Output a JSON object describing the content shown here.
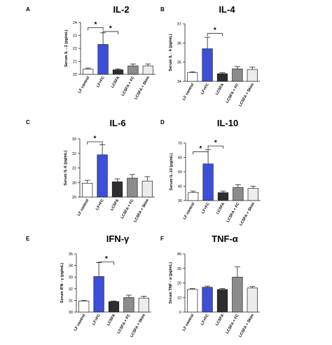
{
  "chart_data": [
    {
      "type": "bar",
      "letter": "A",
      "title": "IL-2",
      "ylabel": "Serum IL - 2 (pg/mL)",
      "categories": [
        "LF control",
        "LF+FC",
        "LCSFA",
        "LCSFA + FC",
        "LCSFA + Skim"
      ],
      "values": [
        20.4,
        22.3,
        20.35,
        20.65,
        20.65
      ],
      "errors": [
        0.08,
        0.9,
        0.07,
        0.15,
        0.15
      ],
      "ylim": [
        20,
        24
      ],
      "yticks": [
        "20",
        "21",
        "22",
        "23",
        "24"
      ],
      "significance": [
        {
          "from": 0,
          "to": 1,
          "label": "*",
          "level": 23.6
        },
        {
          "from": 1,
          "to": 2,
          "label": "*",
          "level": 23.3
        }
      ]
    },
    {
      "type": "bar",
      "letter": "B",
      "title": "IL-4",
      "ylabel": "Serum IL - 4 (pg/mL)",
      "categories": [
        "LF control",
        "LF+FC",
        "LCSFA",
        "LCSFA + FC",
        "LCSFA + Skim"
      ],
      "values": [
        34.45,
        35.7,
        34.4,
        34.65,
        34.62
      ],
      "errors": [
        0.05,
        0.6,
        0.05,
        0.12,
        0.12
      ],
      "ylim": [
        34,
        37
      ],
      "yticks": [
        "34",
        "35",
        "36",
        "37"
      ],
      "significance": [
        {
          "from": 1,
          "to": 2,
          "label": "*",
          "level": 36.5
        }
      ]
    },
    {
      "type": "bar",
      "letter": "C",
      "title": "IL-6",
      "ylabel": "Serum IL-6 (pg/mL)",
      "categories": [
        "LF control",
        "LF+FC",
        "LCSFA",
        "LCSFA + FC",
        "LCSFA + Skim"
      ],
      "values": [
        29.95,
        31.9,
        30.05,
        30.3,
        30.1
      ],
      "errors": [
        0.2,
        0.7,
        0.2,
        0.25,
        0.3
      ],
      "ylim": [
        29,
        33
      ],
      "yticks": [
        "29",
        "30",
        "31",
        "32",
        "33"
      ],
      "significance": [
        {
          "from": 0,
          "to": 1,
          "label": "*",
          "level": 32.8
        }
      ]
    },
    {
      "type": "bar",
      "letter": "D",
      "title": "IL-10",
      "ylabel": "Serum IL-10 (pg/mL)",
      "categories": [
        "LF control",
        "LF+FC",
        "LCSFA",
        "LCSFA + FC",
        "LCSFA + Skim"
      ],
      "values": [
        35.5,
        55.5,
        35.5,
        39,
        38.5
      ],
      "errors": [
        1,
        10,
        1,
        2,
        1.5
      ],
      "ylim": [
        30,
        70
      ],
      "yticks": [
        "30",
        "40",
        "50",
        "60",
        "70"
      ],
      "significance": [
        {
          "from": 0,
          "to": 1,
          "label": "*",
          "level": 64
        },
        {
          "from": 1,
          "to": 2,
          "label": "*",
          "level": 68
        }
      ]
    },
    {
      "type": "bar",
      "letter": "E",
      "title": "IFN-γ",
      "ylabel": "Serum IFN - γ (pg/mL)",
      "categories": [
        "LF control",
        "LF+FC",
        "LCSFA",
        "LCSFA + FC",
        "LCSFA + Skim"
      ],
      "values": [
        30.95,
        33.05,
        30.9,
        31.25,
        31.2
      ],
      "errors": [
        0.05,
        1.2,
        0.05,
        0.2,
        0.15
      ],
      "ylim": [
        30,
        35
      ],
      "yticks": [
        "30",
        "31",
        "32",
        "33",
        "34",
        "35"
      ],
      "significance": [
        {
          "from": 1,
          "to": 2,
          "label": "*",
          "level": 34.3
        }
      ]
    },
    {
      "type": "bar",
      "letter": "F",
      "title": "TNF-α",
      "ylabel": "Serum TNF - α (pg/mL)",
      "categories": [
        "LF control",
        "LF+FC",
        "LCSFA",
        "LCSFA + FC",
        "LCSFA + Skim"
      ],
      "values": [
        15.5,
        17,
        15.5,
        24,
        16.5
      ],
      "errors": [
        0.6,
        0.8,
        0.6,
        7,
        1
      ],
      "ylim": [
        0,
        40
      ],
      "yticks": [
        "0",
        "10",
        "20",
        "30",
        "40"
      ],
      "significance": []
    }
  ],
  "bar_colors": [
    "#ffffff",
    "#3b4fd8",
    "#2e2e2e",
    "#8c8c8c",
    "#ececec"
  ]
}
